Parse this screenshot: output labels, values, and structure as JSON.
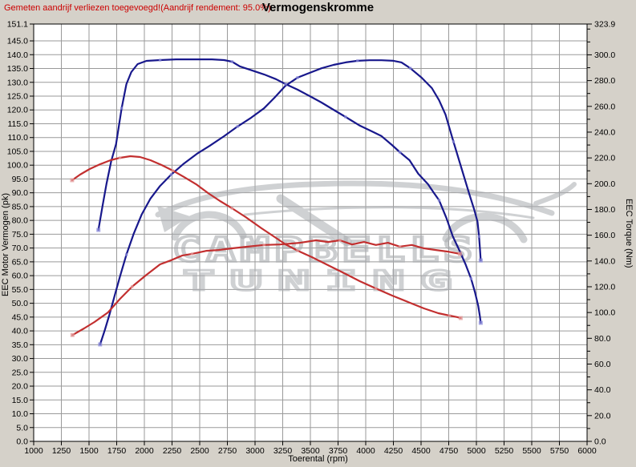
{
  "header": {
    "note": "Gemeten aandrijf verliezen toegevoegd!(Aandrijf rendement: 95.0%)",
    "title": "Vermogenskromme"
  },
  "watermark": {
    "line1": "CAMPBELLS",
    "line2": "TUNING"
  },
  "colors": {
    "background": "#d5d1c9",
    "plot_background": "#ffffff",
    "grid": "#9a9a9a",
    "axis": "#000000",
    "note_text": "#cc0000",
    "blue_curve": "#18188c",
    "red_curve": "#c22f2f",
    "blue_marker": "#8a8ad9",
    "red_marker": "#e39a9a",
    "watermark_gray": "#a9acb0"
  },
  "chart_data": {
    "type": "line",
    "title": "Vermogenskromme",
    "grid": true,
    "legend": "none",
    "x": {
      "label": "Toerental (rpm)",
      "min": 1000,
      "max": 6000,
      "ticks": [
        1000,
        1250,
        1500,
        1750,
        2000,
        2250,
        2500,
        2750,
        3000,
        3250,
        3500,
        3750,
        4000,
        4250,
        4500,
        4750,
        5000,
        5250,
        5500,
        5750,
        6000
      ]
    },
    "y_left": {
      "label": "EEC Motor Vermogen (pk)",
      "min": 0,
      "max": 151.1,
      "ticks": [
        0,
        5,
        10,
        15,
        20,
        25,
        30,
        35,
        40,
        45,
        50,
        55,
        60,
        65,
        70,
        75,
        80,
        85,
        90,
        95,
        100,
        105,
        110,
        115,
        120,
        125,
        130,
        135,
        140,
        145,
        151.1
      ]
    },
    "y_right": {
      "label": "EEC Torque (Nm)",
      "min": 0,
      "max": 323.9,
      "major_ticks": [
        0,
        20,
        40,
        60,
        80,
        100,
        120,
        140,
        160,
        180,
        200,
        220,
        240,
        260,
        280,
        300,
        323.9
      ],
      "minor_ticks": [
        10,
        30,
        50,
        70,
        90,
        110,
        130,
        150,
        170,
        190,
        210,
        230,
        250,
        270,
        290,
        310,
        320
      ]
    },
    "series": [
      {
        "name": "blue-power-curve",
        "axis": "left",
        "color": "#18188c",
        "marker_color": "#8a8ad9",
        "points": [
          [
            1600,
            35.1
          ],
          [
            1643,
            40.3
          ],
          [
            1686,
            46.1
          ],
          [
            1730,
            52.5
          ],
          [
            1780,
            59.7
          ],
          [
            1838,
            67.6
          ],
          [
            1903,
            75.1
          ],
          [
            1975,
            82.1
          ],
          [
            2055,
            87.9
          ],
          [
            2142,
            92.5
          ],
          [
            2243,
            96.6
          ],
          [
            2358,
            100.6
          ],
          [
            2474,
            104.1
          ],
          [
            2590,
            107.0
          ],
          [
            2720,
            110.5
          ],
          [
            2842,
            114.0
          ],
          [
            2965,
            117.2
          ],
          [
            3081,
            120.6
          ],
          [
            3175,
            124.4
          ],
          [
            3276,
            128.8
          ],
          [
            3384,
            131.7
          ],
          [
            3493,
            133.4
          ],
          [
            3601,
            135.1
          ],
          [
            3709,
            136.3
          ],
          [
            3818,
            137.2
          ],
          [
            3926,
            137.8
          ],
          [
            4034,
            138.0
          ],
          [
            4143,
            138.0
          ],
          [
            4251,
            137.8
          ],
          [
            4323,
            137.2
          ],
          [
            4403,
            135.1
          ],
          [
            4504,
            131.7
          ],
          [
            4598,
            127.9
          ],
          [
            4663,
            123.5
          ],
          [
            4721,
            118.3
          ],
          [
            4793,
            108.5
          ],
          [
            4865,
            98.9
          ],
          [
            4938,
            89.3
          ],
          [
            4981,
            83.8
          ],
          [
            5010,
            79.5
          ],
          [
            5024,
            74.2
          ],
          [
            5032,
            69.9
          ],
          [
            5039,
            65.5
          ]
        ]
      },
      {
        "name": "blue-torque-curve",
        "axis": "right",
        "color": "#18188c",
        "marker_color": "#8a8ad9",
        "points": [
          [
            1585,
            164.1
          ],
          [
            1621,
            182.2
          ],
          [
            1657,
            199.6
          ],
          [
            1701,
            217.6
          ],
          [
            1744,
            230.7
          ],
          [
            1795,
            258.6
          ],
          [
            1838,
            277.3
          ],
          [
            1882,
            286.6
          ],
          [
            1939,
            292.8
          ],
          [
            2019,
            295.3
          ],
          [
            2142,
            295.9
          ],
          [
            2286,
            296.5
          ],
          [
            2467,
            296.5
          ],
          [
            2611,
            296.5
          ],
          [
            2720,
            295.9
          ],
          [
            2792,
            294.7
          ],
          [
            2864,
            291.0
          ],
          [
            2973,
            287.9
          ],
          [
            3081,
            284.8
          ],
          [
            3189,
            281.1
          ],
          [
            3276,
            277.3
          ],
          [
            3384,
            273.0
          ],
          [
            3493,
            268.0
          ],
          [
            3601,
            263.0
          ],
          [
            3709,
            257.4
          ],
          [
            3818,
            251.8
          ],
          [
            3948,
            245.0
          ],
          [
            4056,
            240.6
          ],
          [
            4143,
            236.9
          ],
          [
            4237,
            230.0
          ],
          [
            4309,
            224.4
          ],
          [
            4396,
            218.2
          ],
          [
            4475,
            207.7
          ],
          [
            4562,
            199.6
          ],
          [
            4612,
            193.3
          ],
          [
            4663,
            187.1
          ],
          [
            4728,
            173.5
          ],
          [
            4786,
            159.2
          ],
          [
            4844,
            148.6
          ],
          [
            4902,
            137.4
          ],
          [
            4952,
            126.2
          ],
          [
            4988,
            115.6
          ],
          [
            5017,
            105.1
          ],
          [
            5032,
            97.0
          ],
          [
            5039,
            92.0
          ]
        ]
      },
      {
        "name": "red-power-curve",
        "axis": "left",
        "color": "#c22f2f",
        "marker_color": "#e39a9a",
        "points": [
          [
            1350,
            38.5
          ],
          [
            1455,
            40.9
          ],
          [
            1549,
            43.2
          ],
          [
            1672,
            46.7
          ],
          [
            1780,
            51.6
          ],
          [
            1889,
            56.0
          ],
          [
            2019,
            60.3
          ],
          [
            2142,
            64.1
          ],
          [
            2236,
            65.5
          ],
          [
            2344,
            67.3
          ],
          [
            2431,
            67.9
          ],
          [
            2561,
            69.0
          ],
          [
            2669,
            69.3
          ],
          [
            2792,
            69.9
          ],
          [
            2936,
            70.5
          ],
          [
            3081,
            71.1
          ],
          [
            3225,
            71.3
          ],
          [
            3406,
            71.9
          ],
          [
            3551,
            72.8
          ],
          [
            3659,
            72.2
          ],
          [
            3767,
            72.8
          ],
          [
            3876,
            71.3
          ],
          [
            3984,
            72.2
          ],
          [
            4092,
            71.1
          ],
          [
            4201,
            71.9
          ],
          [
            4309,
            70.5
          ],
          [
            4417,
            71.1
          ],
          [
            4525,
            69.9
          ],
          [
            4634,
            69.3
          ],
          [
            4742,
            68.7
          ],
          [
            4851,
            67.9
          ]
        ]
      },
      {
        "name": "red-torque-curve",
        "axis": "right",
        "color": "#c22f2f",
        "marker_color": "#e39a9a",
        "points": [
          [
            1347,
            202.7
          ],
          [
            1419,
            207.0
          ],
          [
            1506,
            211.4
          ],
          [
            1600,
            215.1
          ],
          [
            1694,
            218.2
          ],
          [
            1780,
            220.1
          ],
          [
            1874,
            221.3
          ],
          [
            1961,
            220.7
          ],
          [
            2055,
            218.2
          ],
          [
            2156,
            214.5
          ],
          [
            2257,
            210.1
          ],
          [
            2358,
            205.2
          ],
          [
            2467,
            199.6
          ],
          [
            2575,
            192.7
          ],
          [
            2684,
            186.5
          ],
          [
            2792,
            180.9
          ],
          [
            2915,
            174.1
          ],
          [
            3059,
            165.4
          ],
          [
            3189,
            157.9
          ],
          [
            3276,
            152.9
          ],
          [
            3384,
            148.0
          ],
          [
            3514,
            143.0
          ],
          [
            3659,
            136.8
          ],
          [
            3803,
            130.6
          ],
          [
            3948,
            124.3
          ],
          [
            4092,
            118.7
          ],
          [
            4237,
            113.2
          ],
          [
            4382,
            108.2
          ],
          [
            4526,
            103.2
          ],
          [
            4656,
            99.5
          ],
          [
            4757,
            97.6
          ],
          [
            4829,
            96.4
          ],
          [
            4858,
            95.7
          ]
        ]
      }
    ]
  }
}
